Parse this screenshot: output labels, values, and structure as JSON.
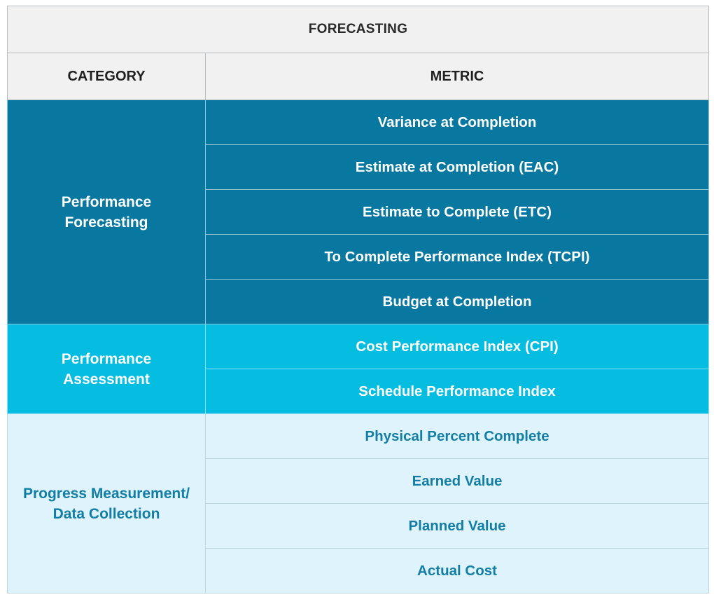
{
  "title": "FORECASTING",
  "headers": {
    "category": "CATEGORY",
    "metric": "METRIC"
  },
  "groups": [
    {
      "category": "Performance Forecasting",
      "color": "#0978a1",
      "text_color": "#ffffff",
      "metrics": [
        "Variance at Completion",
        "Estimate at Completion (EAC)",
        "Estimate to Complete (ETC)",
        "To Complete Performance Index (TCPI)",
        "Budget at Completion"
      ]
    },
    {
      "category": "Performance Assessment",
      "color": "#05bde1",
      "text_color": "#ffffff",
      "metrics": [
        "Cost Performance Index (CPI)",
        "Schedule Performance Index"
      ]
    },
    {
      "category": "Progress Measurement/ Data Collection",
      "color": "#def3fb",
      "text_color": "#127ea6",
      "metrics": [
        "Physical Percent Complete",
        "Earned Value",
        "Planned Value",
        "Actual Cost"
      ]
    }
  ]
}
